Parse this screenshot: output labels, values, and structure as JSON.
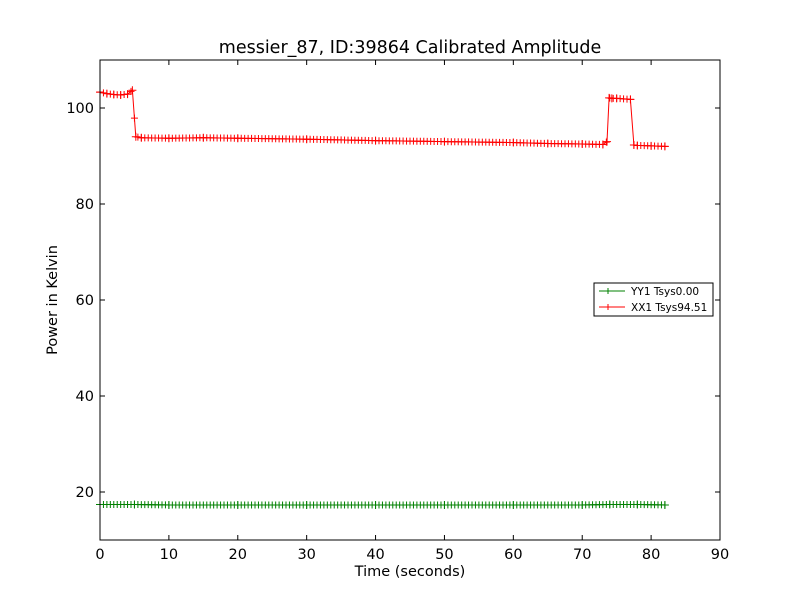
{
  "chart_data": {
    "type": "line",
    "title": "messier_87, ID:39864 Calibrated Amplitude",
    "xlabel": "Time (seconds)",
    "ylabel": "Power in Kelvin",
    "xlim": [
      0,
      90
    ],
    "ylim": [
      10,
      110
    ],
    "xticks": [
      "0",
      "10",
      "20",
      "30",
      "40",
      "50",
      "60",
      "70",
      "80",
      "90"
    ],
    "yticks": [
      "20",
      "40",
      "60",
      "80",
      "100"
    ],
    "grid": false,
    "legend_position": "right",
    "marker": "+",
    "series": [
      {
        "name": "YY1 Tsys0.00",
        "color": "#008000",
        "x": [
          0,
          5,
          10,
          20,
          30,
          40,
          50,
          60,
          70,
          74,
          78,
          82
        ],
        "y": [
          17.4,
          17.4,
          17.3,
          17.3,
          17.3,
          17.3,
          17.3,
          17.3,
          17.3,
          17.4,
          17.4,
          17.3
        ]
      },
      {
        "name": "XX1 Tsys94.51",
        "color": "#ff0000",
        "x": [
          0,
          1,
          2,
          3,
          4,
          4.7,
          5.2,
          6,
          10,
          15,
          20,
          30,
          40,
          50,
          60,
          65,
          70,
          73,
          73.6,
          73.9,
          74.3,
          75,
          77,
          77.5,
          78,
          80,
          82
        ],
        "y": [
          103.3,
          103,
          102.8,
          102.7,
          102.9,
          103.7,
          94,
          93.8,
          93.7,
          93.8,
          93.7,
          93.5,
          93.2,
          93,
          92.8,
          92.6,
          92.5,
          92.4,
          93,
          102.1,
          102,
          102,
          101.8,
          92.3,
          92.2,
          92.1,
          92
        ]
      }
    ]
  }
}
